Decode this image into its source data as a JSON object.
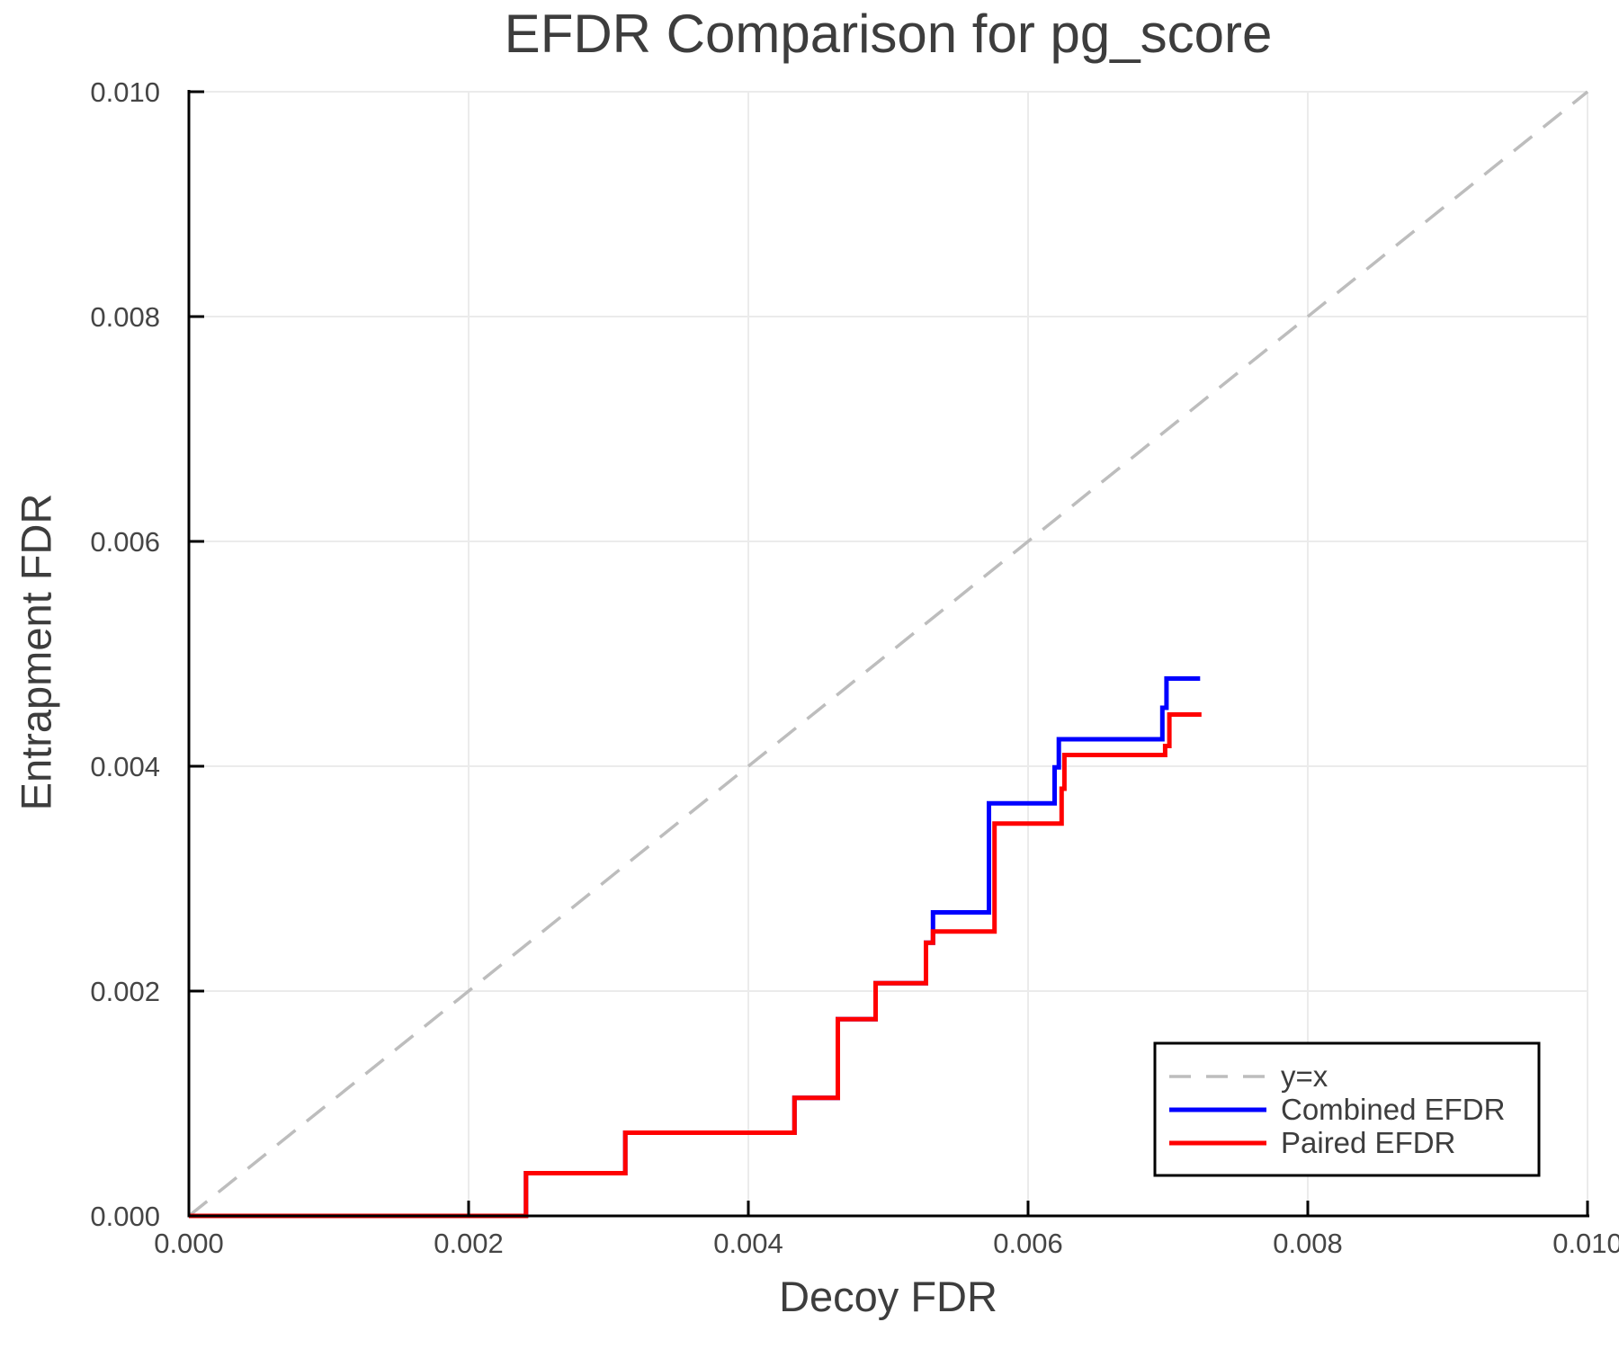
{
  "chart_data": {
    "type": "line",
    "title": "EFDR Comparison for pg_score",
    "xlabel": "Decoy FDR",
    "ylabel": "Entrapment FDR",
    "xlim": [
      0,
      0.01
    ],
    "ylim": [
      0,
      0.01
    ],
    "grid": true,
    "x_ticks": [
      0,
      0.002,
      0.004,
      0.006,
      0.008,
      0.01
    ],
    "x_tick_labels": [
      "0.000",
      "0.002",
      "0.004",
      "0.006",
      "0.008",
      "0.010"
    ],
    "y_ticks": [
      0,
      0.002,
      0.004,
      0.006,
      0.008,
      0.01
    ],
    "y_tick_labels": [
      "0.000",
      "0.002",
      "0.004",
      "0.006",
      "0.008",
      "0.010"
    ],
    "reference_line": {
      "label": "y=x",
      "from": [
        0,
        0
      ],
      "to": [
        0.01,
        0.01
      ],
      "color": "#bdbdbd",
      "dash": "26 16",
      "width": 3.5
    },
    "series": [
      {
        "name": "Combined EFDR",
        "color": "#0000ff",
        "step": "post",
        "width": 5,
        "points": [
          [
            0.0,
            0.0
          ],
          [
            0.00241,
            0.00038
          ],
          [
            0.00312,
            0.00074
          ],
          [
            0.00433,
            0.00105
          ],
          [
            0.00464,
            0.00175
          ],
          [
            0.00491,
            0.00207
          ],
          [
            0.00527,
            0.00243
          ],
          [
            0.00532,
            0.0027
          ],
          [
            0.00572,
            0.00367
          ],
          [
            0.00619,
            0.00399
          ],
          [
            0.00622,
            0.00424
          ],
          [
            0.00696,
            0.00452
          ],
          [
            0.00699,
            0.00478
          ],
          [
            0.00723,
            0.00478
          ]
        ]
      },
      {
        "name": "Paired EFDR",
        "color": "#ff0000",
        "step": "post",
        "width": 5,
        "points": [
          [
            0.0,
            0.0
          ],
          [
            0.00241,
            0.00038
          ],
          [
            0.00312,
            0.00074
          ],
          [
            0.00433,
            0.00105
          ],
          [
            0.00464,
            0.00175
          ],
          [
            0.00491,
            0.00207
          ],
          [
            0.00527,
            0.00243
          ],
          [
            0.00532,
            0.00253
          ],
          [
            0.00576,
            0.00349
          ],
          [
            0.00624,
            0.0038
          ],
          [
            0.00626,
            0.0041
          ],
          [
            0.00698,
            0.00418
          ],
          [
            0.00701,
            0.00446
          ],
          [
            0.00724,
            0.00446
          ]
        ]
      }
    ],
    "legend": {
      "position": "bottom-right",
      "entries": [
        {
          "label": "y=x",
          "color": "#bdbdbd",
          "dashed": true
        },
        {
          "label": "Combined EFDR",
          "color": "#0000ff",
          "dashed": false
        },
        {
          "label": "Paired EFDR",
          "color": "#ff0000",
          "dashed": false
        }
      ]
    }
  }
}
